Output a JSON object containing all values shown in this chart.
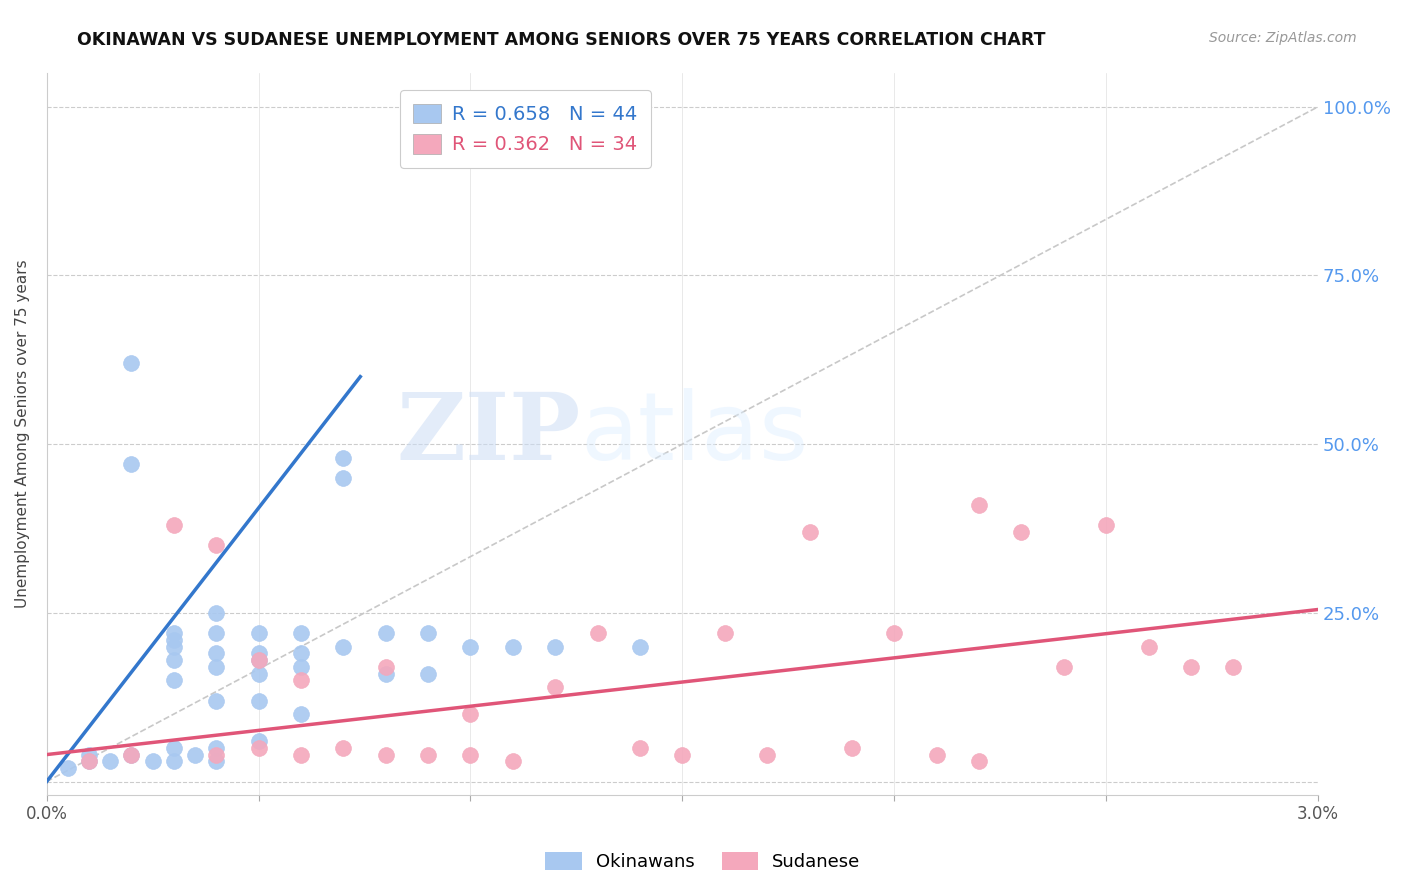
{
  "title": "OKINAWAN VS SUDANESE UNEMPLOYMENT AMONG SENIORS OVER 75 YEARS CORRELATION CHART",
  "source": "Source: ZipAtlas.com",
  "ylabel": "Unemployment Among Seniors over 75 years",
  "right_yticks": [
    0.0,
    0.25,
    0.5,
    0.75,
    1.0
  ],
  "right_yticklabels": [
    "",
    "25.0%",
    "50.0%",
    "75.0%",
    "100.0%"
  ],
  "xmin": 0.0,
  "xmax": 0.03,
  "ymin": -0.02,
  "ymax": 1.05,
  "okinawan_color": "#a8c8f0",
  "sudanese_color": "#f4a8bc",
  "okinawan_line_color": "#3377cc",
  "sudanese_line_color": "#e05578",
  "diagonal_color": "#c8c8c8",
  "R_okinawan": 0.658,
  "N_okinawan": 44,
  "R_sudanese": 0.362,
  "N_sudanese": 34,
  "legend_okinawan": "Okinawans",
  "legend_sudanese": "Sudanese",
  "watermark_zip": "ZIP",
  "watermark_atlas": "atlas",
  "okinawan_x": [
    0.0005,
    0.001,
    0.001,
    0.0015,
    0.002,
    0.002,
    0.002,
    0.0025,
    0.003,
    0.003,
    0.003,
    0.003,
    0.003,
    0.003,
    0.003,
    0.0035,
    0.004,
    0.004,
    0.004,
    0.004,
    0.004,
    0.004,
    0.004,
    0.005,
    0.005,
    0.005,
    0.005,
    0.005,
    0.005,
    0.006,
    0.006,
    0.006,
    0.006,
    0.007,
    0.007,
    0.007,
    0.008,
    0.008,
    0.009,
    0.009,
    0.01,
    0.011,
    0.012,
    0.014
  ],
  "okinawan_y": [
    0.02,
    0.03,
    0.04,
    0.03,
    0.62,
    0.47,
    0.04,
    0.03,
    0.22,
    0.21,
    0.2,
    0.18,
    0.15,
    0.05,
    0.03,
    0.04,
    0.25,
    0.22,
    0.19,
    0.17,
    0.12,
    0.05,
    0.03,
    0.22,
    0.19,
    0.18,
    0.16,
    0.12,
    0.06,
    0.22,
    0.19,
    0.17,
    0.1,
    0.48,
    0.45,
    0.2,
    0.22,
    0.16,
    0.22,
    0.16,
    0.2,
    0.2,
    0.2,
    0.2
  ],
  "sudanese_x": [
    0.001,
    0.002,
    0.003,
    0.004,
    0.004,
    0.005,
    0.005,
    0.006,
    0.006,
    0.007,
    0.008,
    0.008,
    0.009,
    0.01,
    0.01,
    0.011,
    0.012,
    0.013,
    0.014,
    0.015,
    0.016,
    0.017,
    0.018,
    0.019,
    0.02,
    0.021,
    0.022,
    0.022,
    0.023,
    0.024,
    0.025,
    0.026,
    0.027,
    0.028
  ],
  "sudanese_y": [
    0.03,
    0.04,
    0.38,
    0.35,
    0.04,
    0.18,
    0.05,
    0.15,
    0.04,
    0.05,
    0.17,
    0.04,
    0.04,
    0.1,
    0.04,
    0.03,
    0.14,
    0.22,
    0.05,
    0.04,
    0.22,
    0.04,
    0.37,
    0.05,
    0.22,
    0.04,
    0.41,
    0.03,
    0.37,
    0.17,
    0.38,
    0.2,
    0.17,
    0.17
  ],
  "okinawan_line_x": [
    0.0,
    0.0074
  ],
  "okinawan_line_y": [
    0.0,
    0.6
  ],
  "sudanese_line_x": [
    0.0,
    0.03
  ],
  "sudanese_line_y": [
    0.04,
    0.255
  ]
}
